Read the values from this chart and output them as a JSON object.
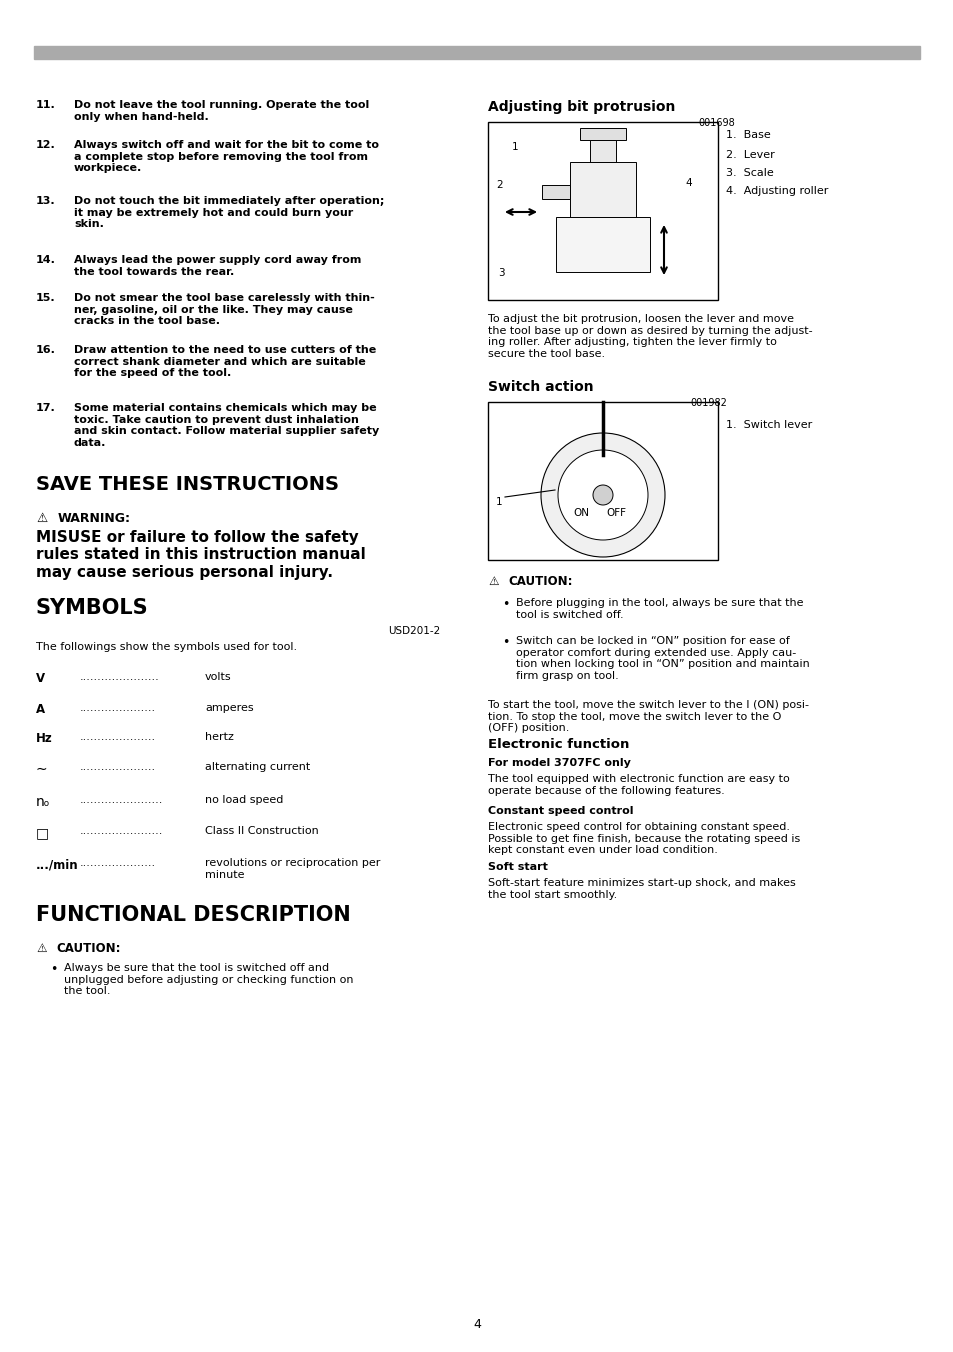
{
  "bg_color": "#ffffff",
  "page_width": 9.54,
  "page_height": 13.52,
  "dpi": 100,
  "top_bar_color": "#aaaaaa",
  "numbered_items": [
    [
      "11.",
      "Do not leave the tool running. Operate the tool\nonly when hand-held."
    ],
    [
      "12.",
      "Always switch off and wait for the bit to come to\na complete stop before removing the tool from\nworkpiece."
    ],
    [
      "13.",
      "Do not touch the bit immediately after operation;\nit may be extremely hot and could burn your\nskin."
    ],
    [
      "14.",
      "Always lead the power supply cord away from\nthe tool towards the rear."
    ],
    [
      "15.",
      "Do not smear the tool base carelessly with thin-\nner, gasoline, oil or the like. They may cause\ncracks in the tool base."
    ],
    [
      "16.",
      "Draw attention to the need to use cutters of the\ncorrect shank diameter and which are suitable\nfor the speed of the tool."
    ],
    [
      "17.",
      "Some material contains chemicals which may be\ntoxic. Take caution to prevent dust inhalation\nand skin contact. Follow material supplier safety\ndata."
    ]
  ],
  "save_title": "SAVE THESE INSTRUCTIONS",
  "warning_text": "WARNING:",
  "misuse_text": "MISUSE or failure to follow the safety\nrules stated in this instruction manual\nmay cause serious personal injury.",
  "symbols_title": "SYMBOLS",
  "symbols_code": "USD201-2",
  "symbols_intro": "The followings show the symbols used for tool.",
  "symbols": [
    [
      "V",
      "volts"
    ],
    [
      "A",
      "amperes"
    ],
    [
      "Hz",
      "hertz"
    ],
    [
      "∼",
      "alternating current"
    ],
    [
      "nₒ",
      "no load speed"
    ],
    [
      "□",
      "Class II Construction"
    ],
    [
      ".../min",
      "revolutions or reciprocation per\nminute"
    ]
  ],
  "symbols_dots": [
    "......................",
    ".....................",
    ".....................",
    ".....................",
    ".......................",
    ".......................",
    "....................."
  ],
  "func_desc_title": "FUNCTIONAL DESCRIPTION",
  "func_caution": "CAUTION:",
  "func_bullet": "Always be sure that the tool is switched off and\nunplugged before adjusting or checking function on\nthe tool.",
  "adj_bit_title": "Adjusting bit protrusion",
  "adj_bit_code": "001698",
  "adj_bit_labels": [
    "1.  Base",
    "2.  Lever",
    "3.  Scale",
    "4.  Adjusting roller"
  ],
  "adj_bit_desc": "To adjust the bit protrusion, loosen the lever and move\nthe tool base up or down as desired by turning the adjust-\ning roller. After adjusting, tighten the lever firmly to\nsecure the tool base.",
  "switch_title": "Switch action",
  "switch_code": "001982",
  "switch_label": "1.  Switch lever",
  "switch_caution": "CAUTION:",
  "switch_bullets": [
    "Before plugging in the tool, always be sure that the\ntool is switched off.",
    "Switch can be locked in “ON” position for ease of\noperator comfort during extended use. Apply cau-\ntion when locking tool in “ON” position and maintain\nfirm grasp on tool."
  ],
  "switch_desc": "To start the tool, move the switch lever to the I (ON) posi-\ntion. To stop the tool, move the switch lever to the O\n(OFF) position.",
  "elec_func_title": "Electronic function",
  "for_model": "For model 3707FC only",
  "for_model_desc": "The tool equipped with electronic function are easy to\noperate because of the following features.",
  "const_speed_title": "Constant speed control",
  "const_speed_desc": "Electronic speed control for obtaining constant speed.\nPossible to get fine finish, because the rotating speed is\nkept constant even under load condition.",
  "soft_start_title": "Soft start",
  "soft_start_desc": "Soft-start feature minimizes start-up shock, and makes\nthe tool start smoothly.",
  "page_number": "4"
}
